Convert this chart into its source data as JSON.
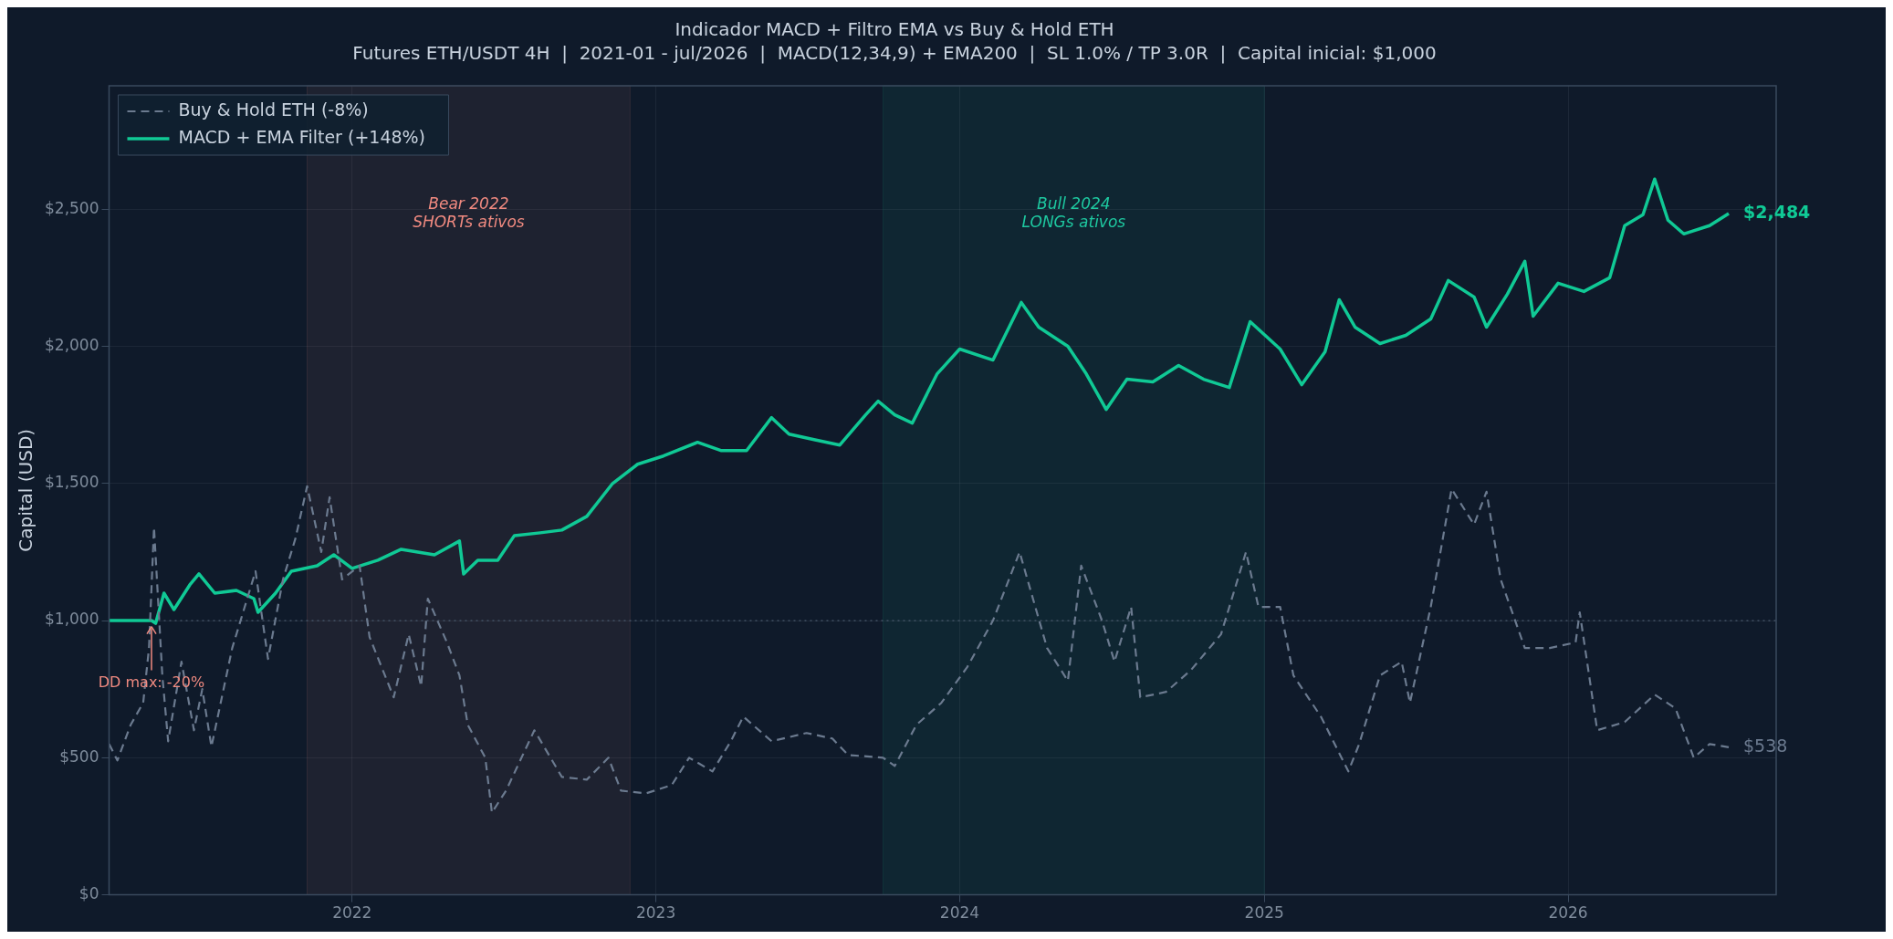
{
  "chart_data": {
    "type": "line",
    "title": "Indicador MACD + Filtro EMA vs Buy & Hold ETH",
    "subtitle": "Futures ETH/USDT 4H  |  2021-01 - jul/2026  |  MACD(12,34,9) + EMA200  |  SL 1.0% / TP 3.0R  |  Capital inicial: $1,000",
    "ylabel": "Capital (USD)",
    "xlim": [
      "2021-03-15",
      "2026-09-08"
    ],
    "xticks": [
      "2022",
      "2023",
      "2024",
      "2025",
      "2026"
    ],
    "ylim": [
      0,
      2950
    ],
    "yticks": [
      {
        "value": 0,
        "label": "$0"
      },
      {
        "value": 500,
        "label": "$500"
      },
      {
        "value": 1000,
        "label": "$1,000"
      },
      {
        "value": 1500,
        "label": "$1,500"
      },
      {
        "value": 2000,
        "label": "$2,000"
      },
      {
        "value": 2500,
        "label": "$2,500"
      }
    ],
    "grid": true,
    "legend": "top left",
    "series": [
      {
        "name": "Buy & Hold ETH (-8%)",
        "color": "#6b7a8f",
        "line_style": "dashed",
        "x": [
          "2021-03-15",
          "2021-03-25",
          "2021-04-10",
          "2021-04-25",
          "2021-05-02",
          "2021-05-08",
          "2021-05-18",
          "2021-05-25",
          "2021-06-10",
          "2021-06-25",
          "2021-07-05",
          "2021-07-16",
          "2021-08-10",
          "2021-08-25",
          "2021-09-07",
          "2021-09-22",
          "2021-10-10",
          "2021-10-25",
          "2021-11-08",
          "2021-11-25",
          "2021-12-05",
          "2021-12-20",
          "2022-01-10",
          "2022-01-22",
          "2022-02-20",
          "2022-03-10",
          "2022-03-25",
          "2022-04-02",
          "2022-04-25",
          "2022-05-10",
          "2022-05-20",
          "2022-06-10",
          "2022-06-18",
          "2022-07-05",
          "2022-08-08",
          "2022-09-10",
          "2022-10-10",
          "2022-11-05",
          "2022-11-20",
          "2022-12-20",
          "2023-01-20",
          "2023-02-10",
          "2023-03-10",
          "2023-04-01",
          "2023-04-16",
          "2023-05-20",
          "2023-07-01",
          "2023-08-01",
          "2023-08-20",
          "2023-10-01",
          "2023-10-15",
          "2023-11-10",
          "2023-12-10",
          "2024-01-10",
          "2024-02-10",
          "2024-03-13",
          "2024-04-15",
          "2024-05-10",
          "2024-05-26",
          "2024-06-20",
          "2024-07-05",
          "2024-07-25",
          "2024-08-05",
          "2024-09-05",
          "2024-10-05",
          "2024-11-10",
          "2024-12-10",
          "2024-12-25",
          "2025-01-20",
          "2025-02-05",
          "2025-03-10",
          "2025-04-12",
          "2025-04-25",
          "2025-05-20",
          "2025-06-15",
          "2025-06-25",
          "2025-07-20",
          "2025-08-14",
          "2025-09-10",
          "2025-09-25",
          "2025-10-12",
          "2025-11-10",
          "2025-12-10",
          "2026-01-10",
          "2026-01-15",
          "2026-02-05",
          "2026-03-10",
          "2026-04-15",
          "2026-05-10",
          "2026-06-01",
          "2026-06-20",
          "2026-07-13"
        ],
        "values": [
          550,
          490,
          620,
          700,
          900,
          1340,
          800,
          560,
          850,
          600,
          750,
          540,
          900,
          1050,
          1180,
          860,
          1150,
          1300,
          1490,
          1250,
          1450,
          1150,
          1200,
          940,
          720,
          950,
          760,
          1080,
          920,
          800,
          620,
          500,
          300,
          380,
          600,
          430,
          420,
          500,
          380,
          370,
          400,
          500,
          450,
          560,
          650,
          560,
          590,
          570,
          510,
          500,
          470,
          620,
          700,
          830,
          1000,
          1250,
          900,
          780,
          1200,
          1000,
          850,
          1050,
          720,
          740,
          820,
          950,
          1250,
          1050,
          1050,
          800,
          650,
          450,
          550,
          800,
          850,
          700,
          1050,
          1480,
          1350,
          1470,
          1150,
          900,
          900,
          920,
          1030,
          600,
          630,
          730,
          680,
          500,
          550,
          538
        ]
      },
      {
        "name": "MACD + EMA Filter (+148%)",
        "color": "#10c995",
        "line_style": "solid",
        "x": [
          "2021-03-15",
          "2021-05-05",
          "2021-05-10",
          "2021-05-20",
          "2021-06-01",
          "2021-06-20",
          "2021-07-01",
          "2021-07-20",
          "2021-08-15",
          "2021-09-05",
          "2021-09-10",
          "2021-10-01",
          "2021-10-20",
          "2021-11-20",
          "2021-12-10",
          "2022-01-01",
          "2022-02-01",
          "2022-03-01",
          "2022-04-10",
          "2022-05-10",
          "2022-05-15",
          "2022-06-01",
          "2022-06-25",
          "2022-07-15",
          "2022-08-15",
          "2022-09-10",
          "2022-10-10",
          "2022-11-10",
          "2022-12-10",
          "2023-01-10",
          "2023-02-20",
          "2023-03-20",
          "2023-04-20",
          "2023-05-20",
          "2023-06-10",
          "2023-07-10",
          "2023-08-10",
          "2023-09-10",
          "2023-09-25",
          "2023-10-15",
          "2023-11-05",
          "2023-12-05",
          "2024-01-01",
          "2024-02-10",
          "2024-03-15",
          "2024-04-05",
          "2024-05-10",
          "2024-06-01",
          "2024-06-25",
          "2024-07-20",
          "2024-08-20",
          "2024-09-20",
          "2024-10-20",
          "2024-11-20",
          "2024-12-15",
          "2025-01-20",
          "2025-02-15",
          "2025-03-15",
          "2025-04-01",
          "2025-04-20",
          "2025-05-20",
          "2025-06-20",
          "2025-07-20",
          "2025-08-10",
          "2025-09-10",
          "2025-09-25",
          "2025-10-20",
          "2025-11-10",
          "2025-11-20",
          "2025-12-20",
          "2026-01-20",
          "2026-02-20",
          "2026-03-10",
          "2026-04-01",
          "2026-04-15",
          "2026-05-01",
          "2026-05-20",
          "2026-06-20",
          "2026-07-13"
        ],
        "values": [
          1000,
          1000,
          990,
          1100,
          1040,
          1130,
          1170,
          1100,
          1110,
          1080,
          1030,
          1100,
          1180,
          1200,
          1240,
          1190,
          1220,
          1260,
          1240,
          1290,
          1170,
          1220,
          1220,
          1310,
          1320,
          1330,
          1380,
          1500,
          1570,
          1600,
          1650,
          1620,
          1620,
          1740,
          1680,
          1660,
          1640,
          1750,
          1800,
          1750,
          1720,
          1900,
          1990,
          1950,
          2160,
          2070,
          2000,
          1900,
          1770,
          1880,
          1870,
          1930,
          1880,
          1850,
          2090,
          1990,
          1860,
          1980,
          2170,
          2070,
          2010,
          2040,
          2100,
          2240,
          2180,
          2070,
          2190,
          2310,
          2110,
          2230,
          2200,
          2250,
          2440,
          2480,
          2610,
          2460,
          2410,
          2440,
          2484
        ]
      }
    ],
    "ref_lines": [
      {
        "axis": "y",
        "value": 1000,
        "line_style": "dotted",
        "color": "#4a5a6e"
      }
    ],
    "bands": [
      {
        "axis": "x",
        "from": "2021-11-08",
        "to": "2022-12-01",
        "label": "Bear 2022\nSHORTs ativos",
        "color": "#f08a80"
      },
      {
        "axis": "x",
        "from": "2023-10-01",
        "to": "2025-01-01",
        "label": "Bull 2024\nLONGs ativos",
        "color": "#1ec8a0"
      }
    ],
    "annotations": [
      {
        "text": "DD max: -20%",
        "x": "2021-05-05",
        "y": 985
      },
      {
        "text": "$2,484",
        "x": "2026-07-13",
        "y": 2484
      },
      {
        "text": "$538",
        "x": "2026-07-13",
        "y": 538
      }
    ]
  }
}
